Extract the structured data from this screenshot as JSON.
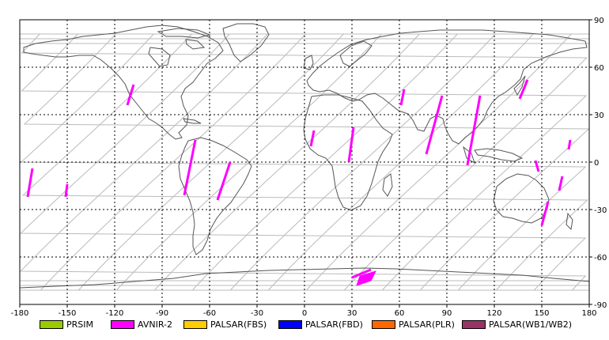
{
  "map": {
    "projection": "equirectangular",
    "lon_range": [
      -180,
      180
    ],
    "lat_range": [
      -90,
      90
    ],
    "grid": "dashed",
    "lon_ticks": [
      "-180",
      "-150",
      "-120",
      "-90",
      "-60",
      "-30",
      "0",
      "30",
      "60",
      "90",
      "120",
      "150",
      "180"
    ],
    "lat_ticks": [
      "90",
      "60",
      "30",
      "0",
      "-30",
      "-60",
      "-90"
    ],
    "colors": {
      "coast": "#555555",
      "orbit": "#bbbbbb",
      "grid": "#000000"
    }
  },
  "legend": [
    {
      "label": "PRSIM",
      "color": "#99cc00"
    },
    {
      "label": "AVNIR-2",
      "color": "#ff00ff"
    },
    {
      "label": "PALSAR(FBS)",
      "color": "#ffcc00"
    },
    {
      "label": "PALSAR(FBD)",
      "color": "#0000ff"
    },
    {
      "label": "PALSAR(PLR)",
      "color": "#ff6600"
    },
    {
      "label": "PALSAR(WB1/WB2)",
      "color": "#993366"
    }
  ],
  "swaths": [
    {
      "sensor": "AVNIR-2",
      "path": [
        [
          -172,
          -4
        ],
        [
          -175,
          -22
        ]
      ]
    },
    {
      "sensor": "AVNIR-2",
      "path": [
        [
          -150,
          -14
        ],
        [
          -151,
          -22
        ]
      ]
    },
    {
      "sensor": "AVNIR-2",
      "path": [
        [
          -108,
          49
        ],
        [
          -112,
          36
        ]
      ]
    },
    {
      "sensor": "AVNIR-2",
      "path": [
        [
          -69,
          14
        ],
        [
          -76,
          -21
        ]
      ]
    },
    {
      "sensor": "AVNIR-2",
      "path": [
        [
          -47,
          0
        ],
        [
          -55,
          -24
        ]
      ]
    },
    {
      "sensor": "AVNIR-2",
      "path": [
        [
          6,
          20
        ],
        [
          4,
          10
        ]
      ]
    },
    {
      "sensor": "AVNIR-2",
      "path": [
        [
          31,
          22
        ],
        [
          28,
          0
        ]
      ]
    },
    {
      "sensor": "AVNIR-2",
      "path": [
        [
          63,
          46
        ],
        [
          61,
          36
        ]
      ]
    },
    {
      "sensor": "AVNIR-2",
      "path": [
        [
          87,
          42
        ],
        [
          77,
          5
        ]
      ]
    },
    {
      "sensor": "AVNIR-2",
      "path": [
        [
          111,
          42
        ],
        [
          103,
          -2
        ]
      ]
    },
    {
      "sensor": "AVNIR-2",
      "path": [
        [
          141,
          52
        ],
        [
          136,
          40
        ]
      ]
    },
    {
      "sensor": "AVNIR-2",
      "path": [
        [
          168,
          14
        ],
        [
          167,
          8
        ]
      ]
    },
    {
      "sensor": "AVNIR-2",
      "path": [
        [
          146,
          1
        ],
        [
          148,
          -6
        ]
      ]
    },
    {
      "sensor": "AVNIR-2",
      "path": [
        [
          163,
          -9
        ],
        [
          161,
          -18
        ]
      ]
    },
    {
      "sensor": "AVNIR-2",
      "path": [
        [
          154,
          -25
        ],
        [
          150,
          -40
        ]
      ]
    },
    {
      "sensor": "AVNIR-2",
      "path": [
        [
          30,
          -73
        ],
        [
          42,
          -68
        ]
      ]
    },
    {
      "sensor": "AVNIR-2",
      "region": [
        [
          33,
          -78
        ],
        [
          42,
          -75
        ],
        [
          45,
          -69
        ],
        [
          35,
          -72
        ]
      ]
    }
  ]
}
